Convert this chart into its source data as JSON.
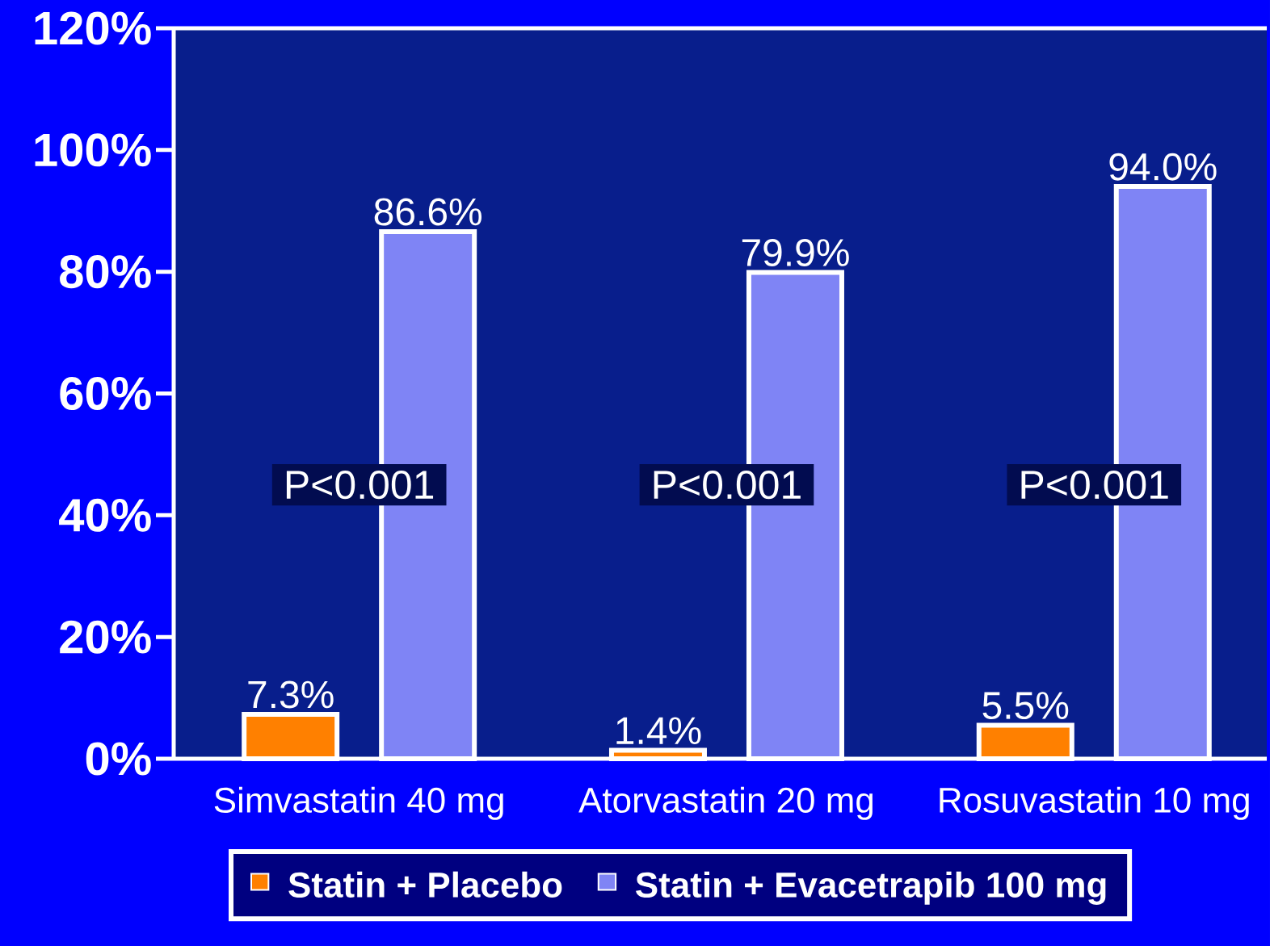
{
  "chart_data": {
    "type": "bar",
    "categories": [
      "Simvastatin 40 mg",
      "Atorvastatin 20 mg",
      "Rosuvastatin 10 mg"
    ],
    "series": [
      {
        "name": "Statin + Placebo",
        "color": "#ff8000",
        "values": [
          7.3,
          1.4,
          5.5
        ],
        "value_labels": [
          "7.3%",
          "1.4%",
          "5.5%"
        ]
      },
      {
        "name": "Statin + Evacetrapib 100 mg",
        "color": "#7f84f5",
        "values": [
          86.6,
          79.9,
          94.0
        ],
        "value_labels": [
          "86.6%",
          "79.9%",
          "94.0%"
        ]
      }
    ],
    "ylim": [
      0,
      120
    ],
    "yticks": [
      {
        "value": 0,
        "label": "0%"
      },
      {
        "value": 20,
        "label": "20%"
      },
      {
        "value": 40,
        "label": "40%"
      },
      {
        "value": 60,
        "label": "60%"
      },
      {
        "value": 80,
        "label": "80%"
      },
      {
        "value": 100,
        "label": "100%"
      },
      {
        "value": 120,
        "label": "120%"
      }
    ],
    "annotations": [
      "P<0.001",
      "P<0.001",
      "P<0.001"
    ],
    "legend": "bottom",
    "grid": false
  }
}
